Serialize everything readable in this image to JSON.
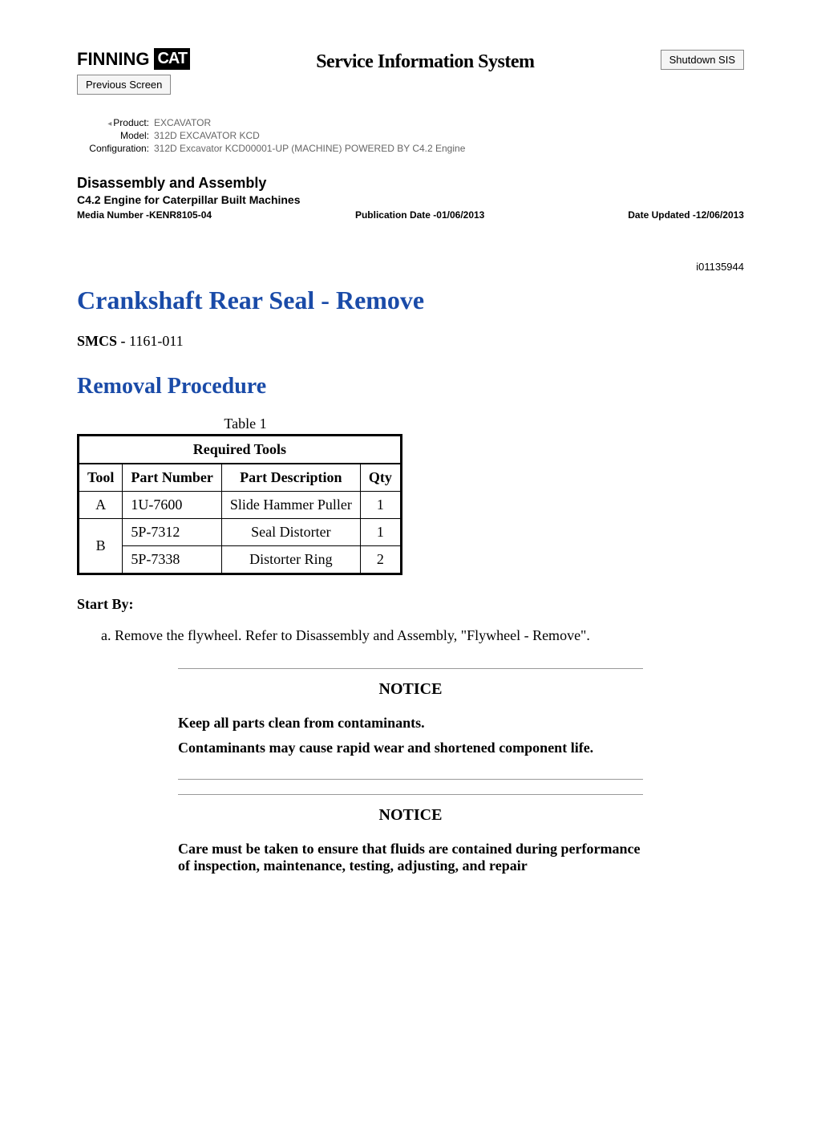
{
  "header": {
    "logo_finning": "FINNING",
    "logo_cat": "CAT",
    "sis_title": "Service Information System",
    "shutdown_label": "Shutdown SIS",
    "previous_label": "Previous Screen"
  },
  "meta": {
    "product_label": "Product:",
    "product_value": "EXCAVATOR",
    "model_label": "Model:",
    "model_value": "312D EXCAVATOR KCD",
    "config_label": "Configuration:",
    "config_value": "312D Excavator KCD00001-UP (MACHINE) POWERED BY C4.2 Engine"
  },
  "section": {
    "h1": "Disassembly and Assembly",
    "h2": "C4.2 Engine for Caterpillar Built Machines",
    "media_number": "Media Number -KENR8105-04",
    "pub_date": "Publication Date -01/06/2013",
    "date_updated": "Date Updated -12/06/2013"
  },
  "doc_id": "i01135944",
  "title": "Crankshaft Rear Seal - Remove",
  "smcs_label": "SMCS - ",
  "smcs_value": "1161-011",
  "subtitle": "Removal Procedure",
  "table": {
    "caption": "Table 1",
    "header": "Required Tools",
    "columns": [
      "Tool",
      "Part Number",
      "Part Description",
      "Qty"
    ],
    "rows": [
      {
        "tool": "A",
        "pn": "1U-7600",
        "desc": "Slide Hammer Puller",
        "qty": "1"
      },
      {
        "tool": "B",
        "pn": "5P-7312",
        "desc": "Seal Distorter",
        "qty": "1"
      },
      {
        "tool": "",
        "pn": "5P-7338",
        "desc": "Distorter Ring",
        "qty": "2"
      }
    ]
  },
  "start_by_label": "Start By:",
  "step_a": "a.  Remove the flywheel. Refer to Disassembly and Assembly, \"Flywheel - Remove\".",
  "notice1": {
    "title": "NOTICE",
    "line1": "Keep all parts clean from contaminants.",
    "line2": "Contaminants may cause rapid wear and shortened component life."
  },
  "notice2": {
    "title": "NOTICE",
    "line1": "Care must be taken to ensure that fluids are contained during performance of inspection, maintenance, testing, adjusting, and repair"
  },
  "colors": {
    "heading_blue": "#1a4ba8",
    "meta_gray": "#666666",
    "border": "#000000"
  }
}
